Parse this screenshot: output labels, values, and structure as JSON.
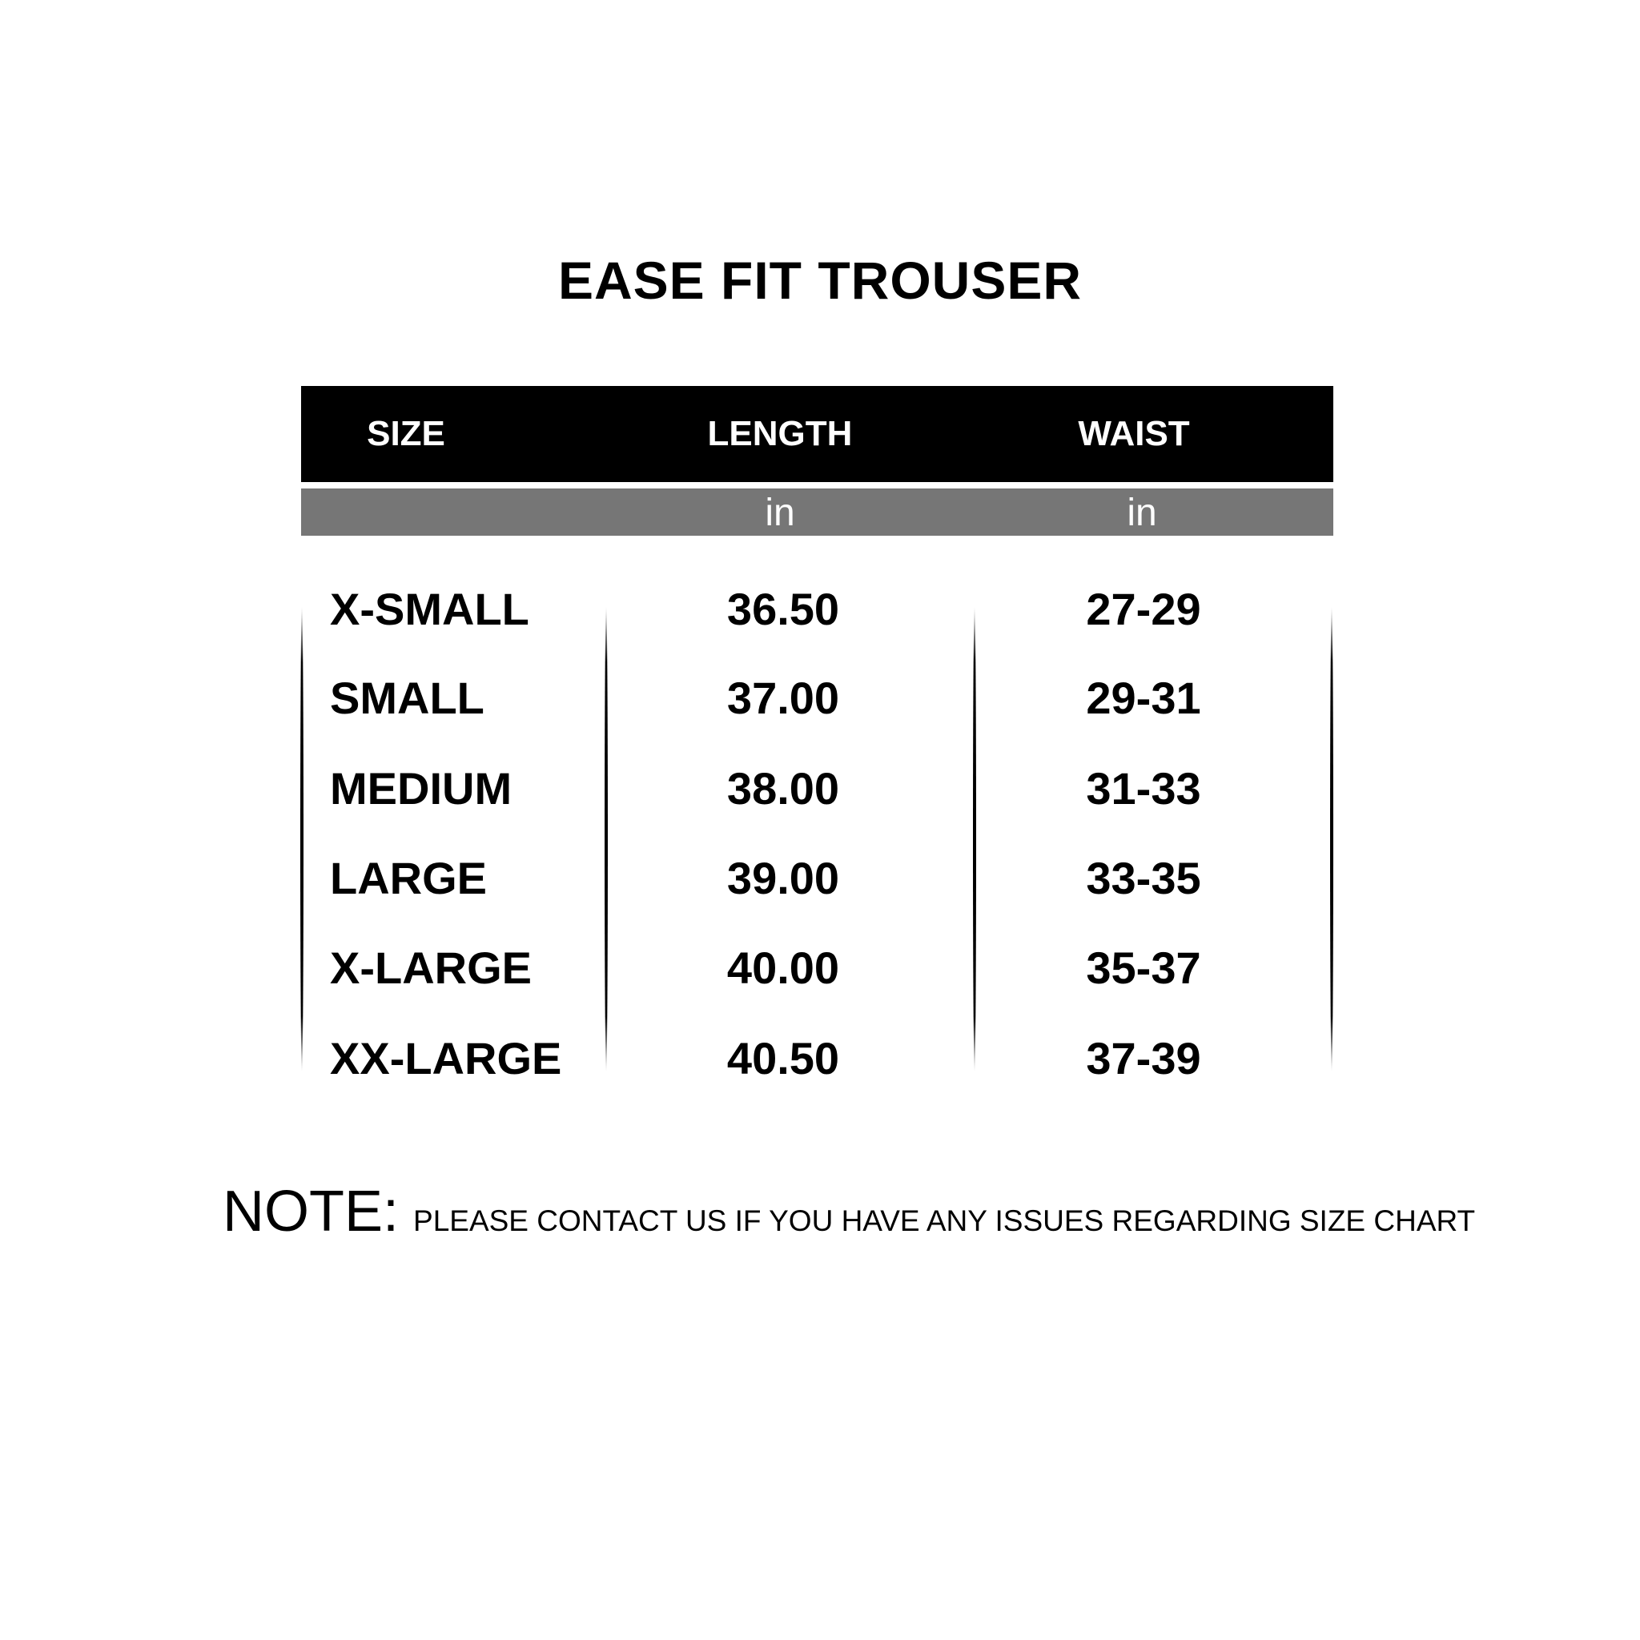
{
  "title": "EASE FIT TROUSER",
  "header": {
    "size": "SIZE",
    "length": "LENGTH",
    "waist": "WAIST"
  },
  "units": {
    "length": "in",
    "waist": "in"
  },
  "colors": {
    "header_bg": "#000000",
    "units_bg": "#767676"
  },
  "rows": [
    {
      "size": "X-SMALL",
      "length": "36.50",
      "waist": "27-29"
    },
    {
      "size": "SMALL",
      "length": "37.00",
      "waist": "29-31"
    },
    {
      "size": "MEDIUM",
      "length": "38.00",
      "waist": "31-33"
    },
    {
      "size": "LARGE",
      "length": "39.00",
      "waist": "33-35"
    },
    {
      "size": "X-LARGE",
      "length": "40.00",
      "waist": "35-37"
    },
    {
      "size": "XX-LARGE",
      "length": "40.50",
      "waist": "37-39"
    }
  ],
  "note": {
    "label": "NOTE:",
    "text": "PLEASE CONTACT US IF YOU HAVE ANY ISSUES REGARDING SIZE CHART"
  }
}
